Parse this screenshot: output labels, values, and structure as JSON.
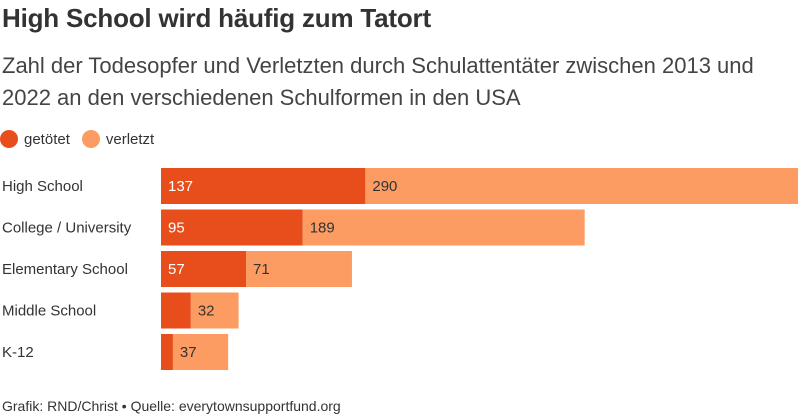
{
  "chart_data": {
    "type": "bar",
    "orientation": "horizontal",
    "stacked": true,
    "title": "High School wird häufig zum Tatort",
    "subtitle": "Zahl der Todesopfer und Verletzten durch Schulattentäter zwischen 2013 und 2022 an den verschiedenen Schulformen in den USA",
    "categories": [
      "High School",
      "College / University",
      "Elementary School",
      "Middle School",
      "K-12"
    ],
    "series": [
      {
        "name": "getötet",
        "color": "#e84e1b",
        "values": [
          137,
          95,
          57,
          20,
          8
        ],
        "labels": [
          "137",
          "95",
          "57",
          "",
          ""
        ]
      },
      {
        "name": "verletzt",
        "color": "#fc9c63",
        "values": [
          290,
          189,
          71,
          32,
          37
        ],
        "labels": [
          "290",
          "189",
          "71",
          "32",
          "37"
        ]
      }
    ],
    "legend_position": "top-left",
    "grid": false
  },
  "footer": {
    "credit": "Grafik: RND/Christ • Quelle: everytownsupportfund.org"
  }
}
